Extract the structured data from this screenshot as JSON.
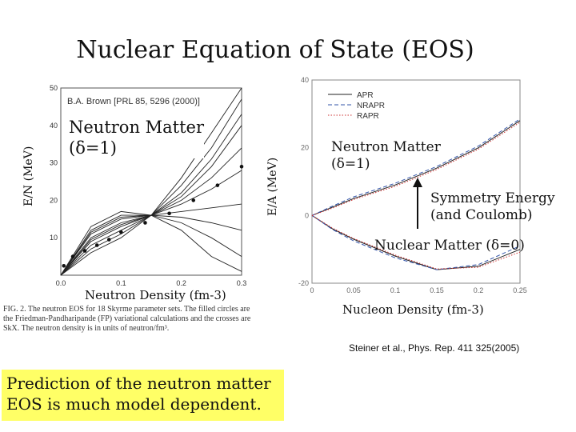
{
  "slide": {
    "title": "Nuclear Equation of State (EOS)",
    "highlight": "Prediction of the neutron matter EOS is much model dependent.",
    "reference": "Steiner et al., Phys. Rep. 411 325(2005)"
  },
  "colors": {
    "highlight_bg": "#ffff66",
    "dotted_curve": "#cc3333",
    "dashed_curve": "#3355aa"
  },
  "chart_data": [
    {
      "type": "line",
      "ylabel": "E/N (MeV)",
      "xlabel": "Neutron Density (fm-3)",
      "xlim": [
        0.0,
        0.3
      ],
      "ylim": [
        0,
        50
      ],
      "x_ticks": [
        "0.0",
        "0.1",
        "0.2",
        "0.3"
      ],
      "y_ticks": [
        "10",
        "20",
        "30",
        "40",
        "50"
      ],
      "source_label": "B.A. Brown [PRL 85, 5296 (2000)]",
      "annotation": "Neutron Matter",
      "annotation_delta": "(δ=1)",
      "caption": "FIG. 2. The neutron EOS for 18 Skyrme parameter sets. The filled circles are the Friedman-Pandharipande (FP) variational calculations and the crosses are SkX. The neutron density is in units of neutron/fm³.",
      "points_fp": [
        {
          "x": 0.005,
          "y": 2.5
        },
        {
          "x": 0.02,
          "y": 5.0
        },
        {
          "x": 0.04,
          "y": 6.5
        },
        {
          "x": 0.06,
          "y": 8.0
        },
        {
          "x": 0.08,
          "y": 9.5
        },
        {
          "x": 0.1,
          "y": 11.5
        },
        {
          "x": 0.14,
          "y": 14.0
        },
        {
          "x": 0.18,
          "y": 16.5
        },
        {
          "x": 0.22,
          "y": 20.0
        },
        {
          "x": 0.26,
          "y": 24.0
        },
        {
          "x": 0.3,
          "y": 29.0
        }
      ],
      "series": [
        {
          "x": [
            0.0,
            0.05,
            0.1,
            0.15,
            0.2,
            0.25,
            0.3
          ],
          "values": [
            0,
            9,
            13,
            16,
            21,
            29,
            40
          ]
        },
        {
          "x": [
            0.0,
            0.05,
            0.1,
            0.15,
            0.2,
            0.25,
            0.3
          ],
          "values": [
            0,
            10,
            14,
            16,
            19,
            23,
            28
          ]
        },
        {
          "x": [
            0.0,
            0.05,
            0.1,
            0.15,
            0.2,
            0.25,
            0.3
          ],
          "values": [
            0,
            11,
            15,
            16,
            17,
            18,
            19
          ]
        },
        {
          "x": [
            0.0,
            0.05,
            0.1,
            0.15,
            0.2,
            0.25,
            0.3
          ],
          "values": [
            0,
            12,
            16,
            16,
            14,
            10,
            5
          ]
        },
        {
          "x": [
            0.0,
            0.05,
            0.1,
            0.15,
            0.2,
            0.25,
            0.3
          ],
          "values": [
            0,
            13,
            17,
            16,
            12,
            5,
            1
          ]
        },
        {
          "x": [
            0.0,
            0.05,
            0.1,
            0.15,
            0.2,
            0.25,
            0.3
          ],
          "values": [
            0,
            7,
            11,
            16,
            24,
            34,
            47
          ]
        },
        {
          "x": [
            0.0,
            0.05,
            0.1,
            0.15,
            0.2,
            0.25,
            0.3
          ],
          "values": [
            0,
            8,
            12,
            16,
            22,
            31,
            43
          ]
        },
        {
          "x": [
            0.0,
            0.05,
            0.1,
            0.15,
            0.2,
            0.25,
            0.3
          ],
          "values": [
            0,
            9.5,
            13.5,
            16,
            20,
            26,
            34
          ]
        },
        {
          "x": [
            0.0,
            0.05,
            0.1,
            0.15,
            0.2,
            0.25,
            0.3
          ],
          "values": [
            0,
            11.5,
            15.5,
            16,
            15.5,
            14,
            12
          ]
        },
        {
          "x": [
            0.0,
            0.05,
            0.1,
            0.15,
            0.2,
            0.25,
            0.3
          ],
          "values": [
            0,
            6,
            10,
            16,
            26,
            38,
            50
          ]
        }
      ]
    },
    {
      "type": "line",
      "ylabel": "E/A (MeV)",
      "xlabel": "Nucleon Density (fm-3)",
      "xlim": [
        0,
        0.25
      ],
      "ylim": [
        -20,
        40
      ],
      "x_ticks": [
        "0",
        "0.05",
        "0.1",
        "0.15",
        "0.2",
        "0.25"
      ],
      "y_ticks": [
        "-20",
        "0",
        "20",
        "40"
      ],
      "legend": [
        "APR",
        "NRAPR",
        "RAPR"
      ],
      "legend_position": "top-right",
      "annotations": {
        "neutron_matter": "Neutron Matter",
        "neutron_delta": "(δ=1)",
        "symmetry_line1": "Symmetry Energy",
        "symmetry_line2": "(and Coulomb)",
        "nuclear_matter": "Nuclear Matter (δ=0)"
      },
      "series": [
        {
          "name": "APR",
          "x": [
            0,
            0.025,
            0.05,
            0.1,
            0.15,
            0.2,
            0.25
          ],
          "values": [
            0,
            2.5,
            5,
            9,
            14,
            20,
            28
          ]
        },
        {
          "name": "NRAPR",
          "x": [
            0,
            0.025,
            0.05,
            0.1,
            0.15,
            0.2,
            0.25
          ],
          "values": [
            0,
            2.8,
            5.5,
            9.5,
            14.5,
            20.5,
            28.5
          ]
        },
        {
          "name": "RAPR",
          "x": [
            0,
            0.025,
            0.05,
            0.1,
            0.15,
            0.2,
            0.25
          ],
          "values": [
            0,
            2.2,
            4.7,
            8.6,
            13.6,
            19.6,
            27.5
          ]
        },
        {
          "name": "APR",
          "x": [
            0,
            0.025,
            0.05,
            0.1,
            0.15,
            0.2,
            0.25
          ],
          "values": [
            0,
            -4,
            -7,
            -12,
            -16,
            -15,
            -10
          ]
        },
        {
          "name": "NRAPR",
          "x": [
            0,
            0.025,
            0.05,
            0.1,
            0.15,
            0.2,
            0.25
          ],
          "values": [
            0,
            -4.2,
            -7.5,
            -12.5,
            -16,
            -14.5,
            -9
          ]
        },
        {
          "name": "RAPR",
          "x": [
            0,
            0.025,
            0.05,
            0.1,
            0.15,
            0.2,
            0.25
          ],
          "values": [
            0,
            -3.8,
            -6.8,
            -11.7,
            -15.8,
            -15.3,
            -10.8
          ]
        }
      ]
    }
  ]
}
